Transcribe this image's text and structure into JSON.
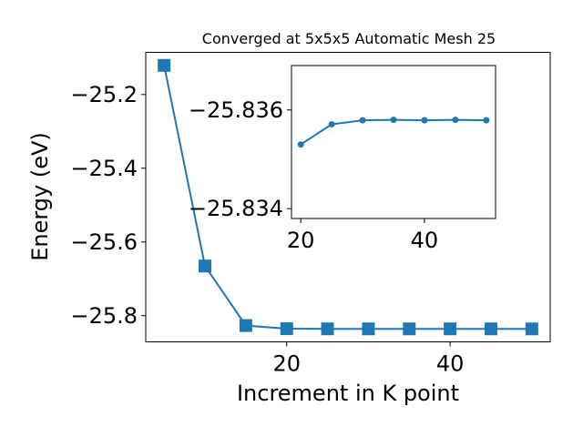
{
  "chart_data": [
    {
      "type": "line",
      "title": "Converged at 5x5x5 Automatic Mesh 25",
      "xlabel": "Increment in K point",
      "ylabel": "Energy (eV)",
      "x": [
        5,
        10,
        15,
        20,
        25,
        30,
        35,
        40,
        45,
        50
      ],
      "series": [
        {
          "values": [
            -25.1209,
            -25.6653,
            -25.8268,
            -25.8353,
            -25.8357,
            -25.8358,
            -25.8358,
            -25.8358,
            -25.8358,
            -25.8358
          ],
          "color": "#1f77b4",
          "marker": "square"
        }
      ],
      "xlim": [
        2.75,
        52.25
      ],
      "ylim": [
        -25.871,
        -25.0856
      ],
      "xticks": [
        20,
        40
      ],
      "xtick_labels": [
        "20",
        "40"
      ],
      "yticks": [
        -25.2,
        -25.4,
        -25.6,
        -25.8
      ],
      "ytick_labels": [
        "−25.2",
        "−25.4",
        "−25.6",
        "−25.8"
      ],
      "grid": false
    },
    {
      "type": "line",
      "role": "inset",
      "title": "",
      "xlabel": "",
      "ylabel": "",
      "x": [
        20,
        25,
        30,
        35,
        40,
        45,
        50
      ],
      "series": [
        {
          "values": [
            -25.8353,
            -25.83571,
            -25.83579,
            -25.8358,
            -25.83579,
            -25.8358,
            -25.83579
          ],
          "color": "#1f77b4",
          "marker": "circle"
        }
      ],
      "xlim": [
        18.5,
        51.5
      ],
      "ylim": [
        -25.8338,
        -25.8369
      ],
      "xticks": [
        20,
        40
      ],
      "xtick_labels": [
        "20",
        "40"
      ],
      "yticks": [
        -25.836,
        -25.834
      ],
      "ytick_labels": [
        "−25.836",
        "−25.834"
      ],
      "grid": false
    }
  ]
}
